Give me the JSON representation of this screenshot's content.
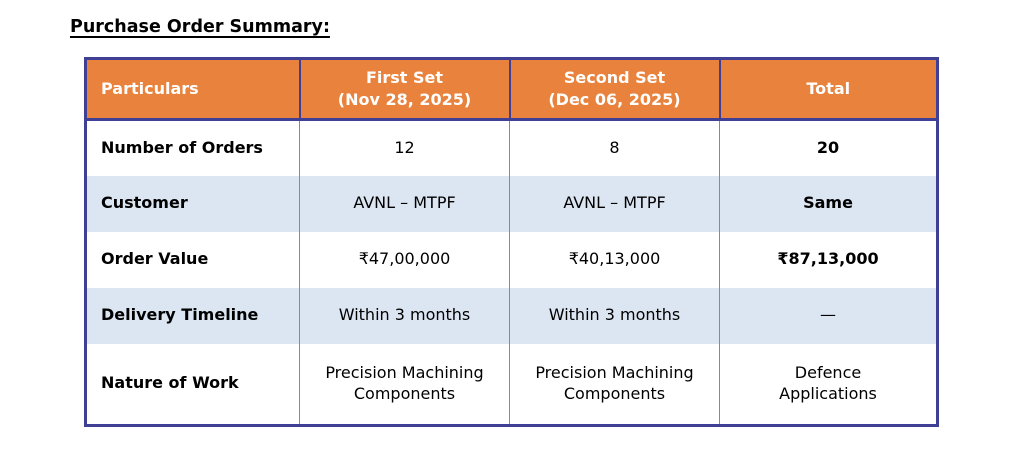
{
  "page": {
    "title": "Purchase Order Summary:"
  },
  "table": {
    "columns": [
      {
        "label": "Particulars"
      },
      {
        "label": "First Set\n(Nov 28, 2025)"
      },
      {
        "label": "Second Set\n(Dec 06, 2025)"
      },
      {
        "label": "Total"
      }
    ],
    "rows": [
      {
        "particulars": "Number of Orders",
        "first": "12",
        "second": "8",
        "total": "20"
      },
      {
        "particulars": "Customer",
        "first": "AVNL – MTPF",
        "second": "AVNL – MTPF",
        "total": "Same"
      },
      {
        "particulars": "Order Value",
        "first": "₹47,00,000",
        "second": "₹40,13,000",
        "total": "₹87,13,000"
      },
      {
        "particulars": "Delivery Timeline",
        "first": "Within 3 months",
        "second": "Within 3 months",
        "total": "—"
      },
      {
        "particulars": "Nature of Work",
        "first": "Precision Machining\nComponents",
        "second": "Precision Machining\nComponents",
        "total": "Defence\nApplications"
      }
    ],
    "colors": {
      "header_bg": "#E8823C",
      "header_text": "#FFFFFF",
      "outer_border": "#3F3F95",
      "inner_border": "#8A8A8A",
      "alt_row_bg": "#DCE6F2",
      "row_bg": "#FFFFFF",
      "text": "#000000"
    }
  }
}
